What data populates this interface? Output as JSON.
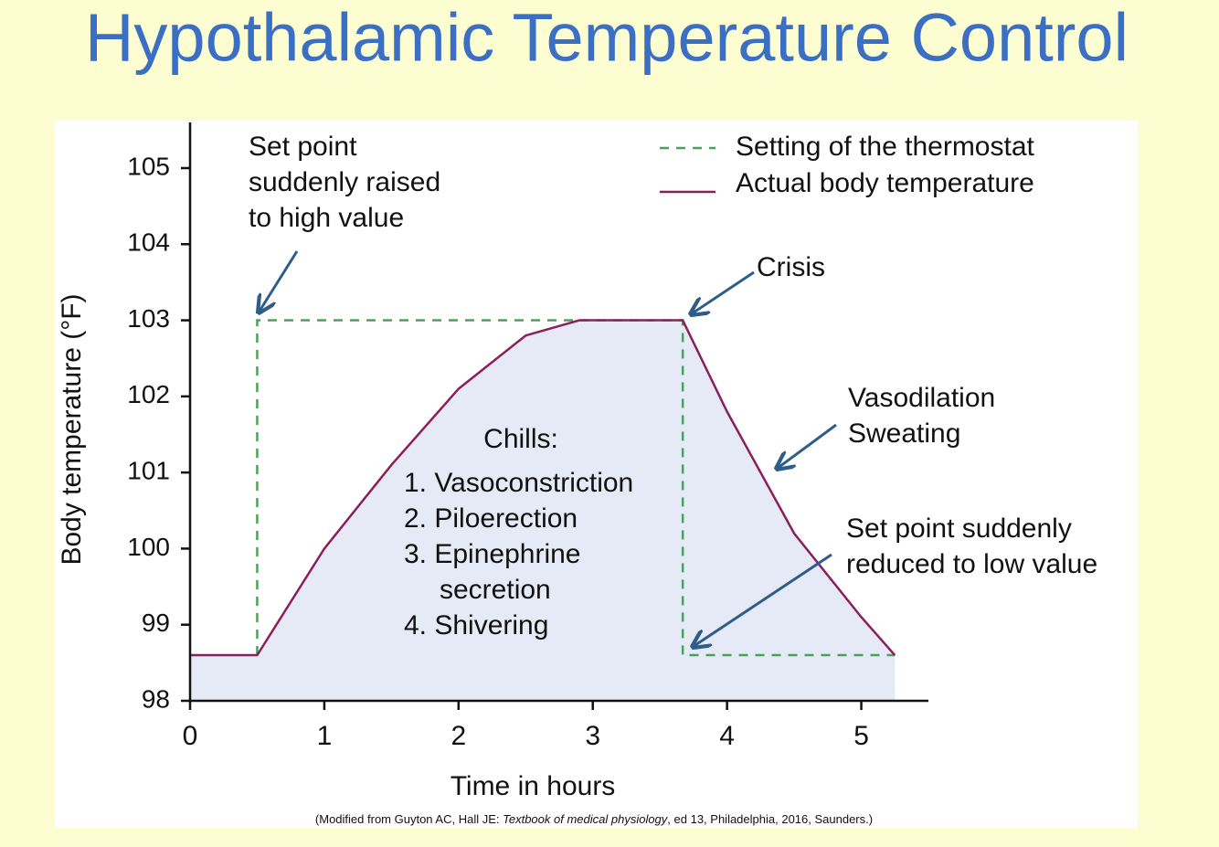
{
  "title": "Hypothalamic Temperature Control",
  "chart_data": {
    "type": "line",
    "xlabel": "Time in hours",
    "ylabel": "Body temperature (°F)",
    "xlim": [
      0,
      5.5
    ],
    "ylim": [
      98,
      105.6
    ],
    "xticks": [
      0,
      1,
      2,
      3,
      4,
      5
    ],
    "yticks": [
      98,
      99,
      100,
      101,
      102,
      103,
      104,
      105
    ],
    "legend": "top-right",
    "series": [
      {
        "name": "Setting of the thermostat",
        "color": "#4aa35a",
        "style": "dashed",
        "x": [
          0.5,
          0.5,
          3.67,
          3.67,
          5.25
        ],
        "values": [
          98.6,
          103,
          103,
          98.6,
          98.6
        ]
      },
      {
        "name": "Actual body temperature",
        "color": "#8b1f5c",
        "style": "solid",
        "fill": "#e6eaf7",
        "x": [
          0,
          0.5,
          1,
          1.5,
          2,
          2.5,
          2.9,
          3.67,
          4,
          4.5,
          5,
          5.25
        ],
        "values": [
          98.6,
          98.6,
          100,
          101.1,
          102.1,
          102.8,
          103,
          103,
          101.8,
          100.2,
          99.1,
          98.6
        ]
      }
    ],
    "annotations": [
      [
        "Set point",
        "suddenly raised",
        "to high value"
      ],
      [
        "Crisis"
      ],
      [
        "Vasodilation",
        "Sweating"
      ],
      [
        "Set point suddenly",
        "reduced to low value"
      ],
      [
        "Chills:",
        "1. Vasoconstriction",
        "2. Piloerection",
        "3. Epinephrine",
        "secretion",
        "4. Shivering"
      ]
    ],
    "source": [
      "(Modified from Guyton AC, Hall JE: ",
      "Textbook of medical physiology",
      ", ed 13, Philadelphia, 2016, Saunders.)"
    ]
  }
}
